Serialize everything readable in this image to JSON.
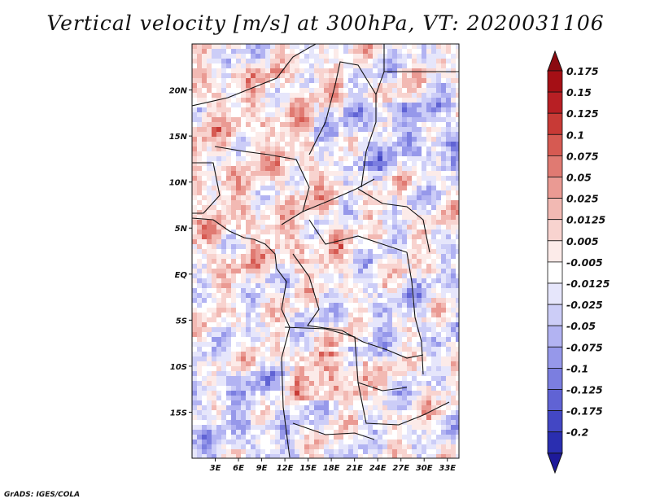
{
  "title": "Vertical velocity [m/s] at 300hPa, VT: 2020031106",
  "credit": "GrADS: IGES/COLA",
  "map": {
    "projection": "lat-lon",
    "lon_range": [
      0,
      34.5
    ],
    "lat_range": [
      -20,
      25
    ],
    "lat_ticks": [
      {
        "value": 20,
        "label": "20N"
      },
      {
        "value": 15,
        "label": "15N"
      },
      {
        "value": 10,
        "label": "10N"
      },
      {
        "value": 5,
        "label": "5N"
      },
      {
        "value": 0,
        "label": "EQ"
      },
      {
        "value": -5,
        "label": "5S"
      },
      {
        "value": -10,
        "label": "10S"
      },
      {
        "value": -15,
        "label": "15S"
      }
    ],
    "lon_ticks": [
      {
        "value": 3,
        "label": "3E"
      },
      {
        "value": 6,
        "label": "6E"
      },
      {
        "value": 9,
        "label": "9E"
      },
      {
        "value": 12,
        "label": "12E"
      },
      {
        "value": 15,
        "label": "15E"
      },
      {
        "value": 18,
        "label": "18E"
      },
      {
        "value": 21,
        "label": "21E"
      },
      {
        "value": 24,
        "label": "24E"
      },
      {
        "value": 27,
        "label": "27E"
      },
      {
        "value": 30,
        "label": "30E"
      },
      {
        "value": 33,
        "label": "33E"
      }
    ]
  },
  "colorbar": {
    "levels": [
      {
        "label": "0.175",
        "color": "#a50f15"
      },
      {
        "label": "0.15",
        "color": "#b81f24"
      },
      {
        "label": "0.125",
        "color": "#c83a36"
      },
      {
        "label": "0.1",
        "color": "#d65a52"
      },
      {
        "label": "0.075",
        "color": "#e07a72"
      },
      {
        "label": "0.05",
        "color": "#ea9a93"
      },
      {
        "label": "0.025",
        "color": "#f2b9b3"
      },
      {
        "label": "0.0125",
        "color": "#f8d3cf"
      },
      {
        "label": "0.005",
        "color": "#fcebe9"
      },
      {
        "label": "-0.005",
        "color": "#ffffff"
      },
      {
        "label": "-0.0125",
        "color": "#e6e6fb"
      },
      {
        "label": "-0.025",
        "color": "#cccdf7"
      },
      {
        "label": "-0.05",
        "color": "#b2b3f2"
      },
      {
        "label": "-0.075",
        "color": "#9698ea"
      },
      {
        "label": "-0.1",
        "color": "#7b7ee0"
      },
      {
        "label": "-0.125",
        "color": "#6063d4"
      },
      {
        "label": "-0.175",
        "color": "#4347c4"
      },
      {
        "label": "-0.2",
        "color": "#2a2eb0"
      }
    ],
    "top_arrow_color": "#8b0a10",
    "bottom_arrow_color": "#1e1a9a"
  }
}
